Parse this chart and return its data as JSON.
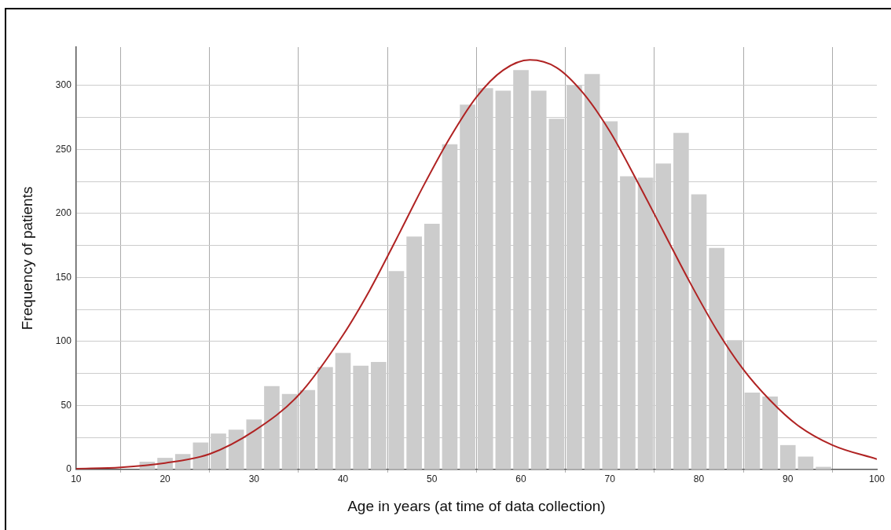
{
  "chart_data": {
    "type": "histogram",
    "xlabel": "Age in years (at time of data collection)",
    "ylabel": "Frequency of patients",
    "bins": [
      17,
      19,
      21,
      23,
      25,
      27,
      29,
      31,
      33,
      35,
      37,
      39,
      41,
      43,
      45,
      47,
      49,
      51,
      53,
      55,
      57,
      59,
      61,
      63,
      65,
      67,
      69,
      71,
      73,
      75,
      77,
      79,
      81,
      83,
      85,
      87,
      89,
      91,
      93,
      95
    ],
    "values": [
      6,
      9,
      12,
      21,
      28,
      31,
      39,
      65,
      59,
      62,
      80,
      91,
      81,
      84,
      155,
      182,
      192,
      254,
      285,
      298,
      296,
      312,
      296,
      274,
      300,
      309,
      272,
      229,
      228,
      239,
      263,
      215,
      173,
      101,
      60,
      57,
      19,
      10,
      2
    ],
    "color": "#cccccc",
    "series": [
      {
        "type": "line",
        "color": "#b02323",
        "x": [
          10,
          15,
          20,
          25,
          30,
          35,
          40,
          43,
          46,
          49,
          52,
          55,
          58,
          61,
          64,
          67,
          70,
          73,
          76,
          79,
          82,
          85,
          88,
          91,
          95,
          100
        ],
        "values": [
          0.5,
          1.6,
          5,
          12,
          30,
          58,
          105,
          140,
          180,
          221,
          259,
          291,
          312,
          320,
          314,
          294,
          264,
          226,
          186,
          146,
          109,
          78,
          54,
          35,
          19,
          8
        ]
      }
    ],
    "xlim": [
      10,
      100
    ],
    "xticks": [
      10,
      20,
      30,
      40,
      50,
      60,
      70,
      80,
      90,
      100
    ],
    "ylim": [
      0,
      330
    ],
    "yticks": [
      0,
      {
        "value": 25,
        "label": null
      },
      50,
      {
        "value": 75,
        "label": null
      },
      100,
      {
        "value": 125,
        "label": null
      },
      150,
      {
        "value": 175,
        "label": null
      },
      200,
      {
        "value": 225,
        "label": null
      },
      250,
      {
        "value": 275,
        "label": null
      },
      300
    ],
    "grid": true
  }
}
